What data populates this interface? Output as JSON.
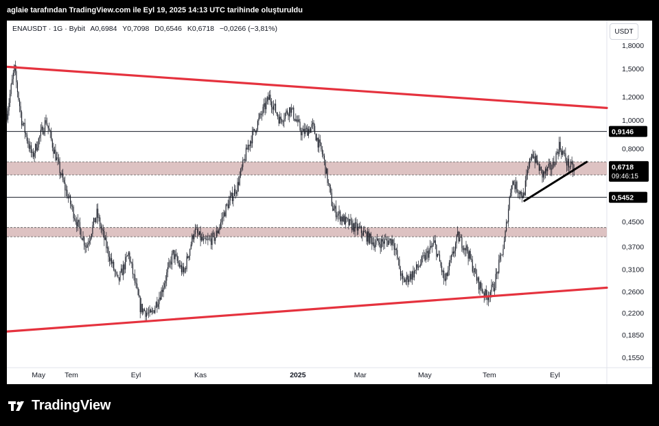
{
  "header": {
    "credit": "aglaie tarafından TradingView.com ile Eyl 19, 2025 14:13 UTC tarihinde oluşturuldu"
  },
  "symbol_bar": {
    "symbol": "ENAUSDT · 1G · Bybit",
    "open": "A0,6984",
    "high": "Y0,7098",
    "low": "D0,6546",
    "close": "K0,6718",
    "change": "−0,0266 (−3,81%)"
  },
  "currency": "USDT",
  "footer": {
    "brand": "TradingView"
  },
  "colors": {
    "trendline": "#e5323e",
    "zone": "#cfa8a8",
    "candle": "#131722",
    "background": "#ffffff",
    "uptrend": "#000000"
  },
  "chart_data": {
    "type": "candlestick",
    "scale": "log",
    "ylim": [
      0.14,
      2.1
    ],
    "y_ticks": [
      {
        "value": 1.8,
        "label": "1,8000"
      },
      {
        "value": 1.5,
        "label": "1,5000"
      },
      {
        "value": 1.2,
        "label": "1,2000"
      },
      {
        "value": 1.0,
        "label": "1,0000"
      },
      {
        "value": 0.8,
        "label": "0,8000"
      },
      {
        "value": 0.45,
        "label": "0,4500"
      },
      {
        "value": 0.37,
        "label": "0,3700"
      },
      {
        "value": 0.31,
        "label": "0,3100"
      },
      {
        "value": 0.26,
        "label": "0,2600"
      },
      {
        "value": 0.22,
        "label": "0,2200"
      },
      {
        "value": 0.185,
        "label": "0,1850"
      },
      {
        "value": 0.155,
        "label": "0,1550"
      }
    ],
    "x_ticks": [
      {
        "date": "2024-05",
        "label": "May",
        "bold": false
      },
      {
        "date": "2024-06",
        "label": "Tem",
        "bold": false
      },
      {
        "date": "2024-08",
        "label": "Eyl",
        "bold": false
      },
      {
        "date": "2024-10",
        "label": "Kas",
        "bold": false
      },
      {
        "date": "2025-01",
        "label": "2025",
        "bold": true
      },
      {
        "date": "2025-03",
        "label": "Mar",
        "bold": false
      },
      {
        "date": "2025-05",
        "label": "May",
        "bold": false
      },
      {
        "date": "2025-07",
        "label": "Tem",
        "bold": false
      },
      {
        "date": "2025-09",
        "label": "Eyl",
        "bold": false
      }
    ],
    "price_path": [
      {
        "date": "2024-04-01",
        "price": 1.05
      },
      {
        "date": "2024-04-08",
        "price": 1.5
      },
      {
        "date": "2024-04-15",
        "price": 1.0
      },
      {
        "date": "2024-04-25",
        "price": 0.75
      },
      {
        "date": "2024-05-08",
        "price": 1.0
      },
      {
        "date": "2024-05-15",
        "price": 0.8
      },
      {
        "date": "2024-05-25",
        "price": 0.6
      },
      {
        "date": "2024-06-05",
        "price": 0.46
      },
      {
        "date": "2024-06-15",
        "price": 0.37
      },
      {
        "date": "2024-06-25",
        "price": 0.48
      },
      {
        "date": "2024-07-05",
        "price": 0.36
      },
      {
        "date": "2024-07-15",
        "price": 0.28
      },
      {
        "date": "2024-07-25",
        "price": 0.35
      },
      {
        "date": "2024-08-05",
        "price": 0.23
      },
      {
        "date": "2024-08-15",
        "price": 0.215
      },
      {
        "date": "2024-08-25",
        "price": 0.26
      },
      {
        "date": "2024-09-05",
        "price": 0.35
      },
      {
        "date": "2024-09-15",
        "price": 0.3
      },
      {
        "date": "2024-09-25",
        "price": 0.42
      },
      {
        "date": "2024-10-05",
        "price": 0.38
      },
      {
        "date": "2024-10-15",
        "price": 0.4
      },
      {
        "date": "2024-10-25",
        "price": 0.5
      },
      {
        "date": "2024-11-05",
        "price": 0.6
      },
      {
        "date": "2024-11-15",
        "price": 0.82
      },
      {
        "date": "2024-11-25",
        "price": 1.0
      },
      {
        "date": "2024-12-05",
        "price": 1.2
      },
      {
        "date": "2024-12-15",
        "price": 1.0
      },
      {
        "date": "2024-12-25",
        "price": 1.1
      },
      {
        "date": "2025-01-05",
        "price": 0.9
      },
      {
        "date": "2025-01-15",
        "price": 0.95
      },
      {
        "date": "2025-01-25",
        "price": 0.75
      },
      {
        "date": "2025-02-03",
        "price": 0.5
      },
      {
        "date": "2025-02-15",
        "price": 0.45
      },
      {
        "date": "2025-03-01",
        "price": 0.42
      },
      {
        "date": "2025-03-15",
        "price": 0.38
      },
      {
        "date": "2025-04-01",
        "price": 0.39
      },
      {
        "date": "2025-04-10",
        "price": 0.28
      },
      {
        "date": "2025-04-20",
        "price": 0.3
      },
      {
        "date": "2025-05-01",
        "price": 0.34
      },
      {
        "date": "2025-05-10",
        "price": 0.38
      },
      {
        "date": "2025-05-20",
        "price": 0.28
      },
      {
        "date": "2025-06-01",
        "price": 0.4
      },
      {
        "date": "2025-06-10",
        "price": 0.36
      },
      {
        "date": "2025-06-20",
        "price": 0.28
      },
      {
        "date": "2025-06-28",
        "price": 0.25
      },
      {
        "date": "2025-07-05",
        "price": 0.27
      },
      {
        "date": "2025-07-15",
        "price": 0.38
      },
      {
        "date": "2025-07-22",
        "price": 0.62
      },
      {
        "date": "2025-08-02",
        "price": 0.55
      },
      {
        "date": "2025-08-10",
        "price": 0.78
      },
      {
        "date": "2025-08-20",
        "price": 0.65
      },
      {
        "date": "2025-08-30",
        "price": 0.7
      },
      {
        "date": "2025-09-05",
        "price": 0.82
      },
      {
        "date": "2025-09-12",
        "price": 0.72
      },
      {
        "date": "2025-09-19",
        "price": 0.6718
      }
    ],
    "trendlines": [
      {
        "name": "upper",
        "from": {
          "date": "2024-04-01",
          "price": 1.52
        },
        "to": {
          "date": "2025-10-20",
          "price": 1.1
        }
      },
      {
        "name": "lower",
        "from": {
          "date": "2024-04-01",
          "price": 0.19
        },
        "to": {
          "date": "2025-10-20",
          "price": 0.268
        }
      },
      {
        "name": "uptrend",
        "from": {
          "date": "2025-08-03",
          "price": 0.53
        },
        "to": {
          "date": "2025-10-01",
          "price": 0.72
        }
      }
    ],
    "zones": [
      {
        "name": "upper-zone",
        "top": 0.72,
        "bottom": 0.65
      },
      {
        "name": "lower-zone",
        "top": 0.43,
        "bottom": 0.4
      }
    ],
    "horizontal_levels": [
      {
        "value": 0.9146,
        "label": "0,9146"
      },
      {
        "value": 0.5452,
        "label": "0,5452"
      }
    ],
    "current_price": {
      "value": 0.6718,
      "label": "0,6718",
      "countdown": "09:46:15"
    }
  }
}
